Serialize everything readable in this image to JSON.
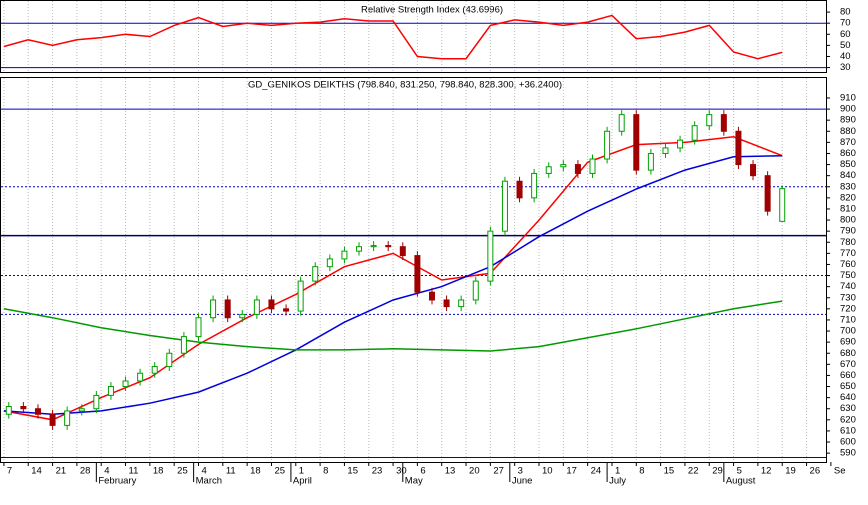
{
  "chart_data": [
    {
      "type": "line",
      "title": "Relative Strength Index (43.6996)",
      "x": [
        0,
        5,
        10,
        15,
        20,
        25,
        30,
        35,
        40,
        45,
        50,
        55,
        60,
        65,
        70,
        75,
        80,
        85,
        90,
        95,
        100,
        105,
        110,
        115,
        120,
        125,
        130,
        135,
        140,
        145,
        150,
        155,
        160
      ],
      "series": [
        {
          "color": "#ff0000",
          "values": [
            49,
            55,
            50,
            55,
            57,
            60,
            58,
            68,
            75,
            67,
            70,
            68,
            70,
            71,
            74,
            72,
            72,
            40,
            38,
            38,
            68,
            73,
            71,
            68,
            71,
            77,
            56,
            58,
            62,
            68,
            44,
            38,
            43.6996
          ]
        }
      ],
      "xlim": [
        -0.6,
        169
      ],
      "ylim": [
        26,
        90
      ],
      "yticks": [
        30,
        40,
        50,
        60,
        70,
        80
      ],
      "levels": [
        {
          "value": 70,
          "style": "solid",
          "color": "#0000cc"
        },
        {
          "value": 30,
          "style": "solid",
          "color": "#0000cc"
        }
      ],
      "grid": true
    },
    {
      "type": "candlestick",
      "title": "GD_GENIKOS DEIKTHS (798.840, 831.250, 798.840, 828.300, +36.2400)",
      "x": [
        1,
        4,
        7,
        10,
        13,
        16,
        19,
        22,
        25,
        28,
        31,
        34,
        37,
        40,
        43,
        46,
        49,
        52,
        55,
        58,
        61,
        64,
        67,
        70,
        73,
        76,
        79,
        82,
        85,
        88,
        91,
        94,
        97,
        100,
        103,
        106,
        109,
        112,
        115,
        118,
        121,
        124,
        127,
        130,
        133,
        136,
        139,
        142,
        145,
        148,
        151,
        154,
        157,
        160
      ],
      "open": [
        625,
        632,
        630,
        625,
        615,
        628,
        630,
        642,
        650,
        655,
        662,
        668,
        680,
        695,
        712,
        728,
        712,
        715,
        728,
        720,
        718,
        745,
        758,
        765,
        772,
        776,
        777,
        776,
        768,
        735,
        728,
        722,
        728,
        745,
        790,
        835,
        820,
        842,
        848,
        850,
        842,
        855,
        880,
        895,
        845,
        860,
        865,
        872,
        885,
        895,
        880,
        850,
        840,
        798.84
      ],
      "high": [
        636,
        636,
        634,
        629,
        632,
        634,
        646,
        654,
        659,
        666,
        672,
        684,
        699,
        716,
        732,
        732,
        719,
        732,
        732,
        724,
        749,
        762,
        769,
        776,
        780,
        781,
        781,
        780,
        772,
        739,
        732,
        732,
        749,
        794,
        839,
        839,
        846,
        852,
        854,
        854,
        859,
        884,
        899,
        899,
        864,
        869,
        876,
        889,
        899,
        899,
        884,
        854,
        844,
        831.25
      ],
      "low": [
        621,
        626,
        621,
        611,
        611,
        624,
        626,
        638,
        646,
        651,
        658,
        664,
        676,
        691,
        708,
        708,
        708,
        711,
        716,
        714,
        714,
        741,
        754,
        761,
        768,
        772,
        772,
        764,
        731,
        724,
        718,
        718,
        724,
        741,
        786,
        816,
        816,
        838,
        844,
        838,
        838,
        851,
        876,
        841,
        841,
        856,
        861,
        868,
        881,
        876,
        846,
        836,
        804,
        798.84
      ],
      "close": [
        632,
        630,
        625,
        615,
        628,
        630,
        642,
        650,
        655,
        662,
        668,
        680,
        695,
        712,
        728,
        712,
        715,
        728,
        720,
        718,
        745,
        758,
        765,
        772,
        776,
        777,
        776,
        768,
        735,
        728,
        722,
        728,
        745,
        790,
        835,
        820,
        842,
        848,
        850,
        842,
        855,
        880,
        895,
        845,
        860,
        865,
        872,
        885,
        895,
        880,
        850,
        840,
        808,
        828.3
      ],
      "up_color": "#00a000",
      "down_color": "#a00000",
      "series": [
        {
          "color": "#ff0000",
          "x": [
            0,
            10,
            20,
            30,
            40,
            50,
            60,
            70,
            80,
            90,
            100,
            110,
            120,
            130,
            140,
            150,
            160
          ],
          "values": [
            628,
            620,
            640,
            658,
            688,
            712,
            733,
            758,
            770,
            746,
            752,
            800,
            852,
            868,
            870,
            875,
            858
          ]
        },
        {
          "color": "#0000dd",
          "x": [
            0,
            10,
            20,
            30,
            40,
            50,
            60,
            70,
            80,
            90,
            100,
            110,
            120,
            130,
            140,
            150,
            160
          ],
          "values": [
            628,
            625,
            628,
            635,
            645,
            662,
            683,
            708,
            728,
            740,
            758,
            785,
            808,
            828,
            845,
            857,
            858
          ]
        },
        {
          "color": "#009900",
          "x": [
            0,
            10,
            20,
            30,
            40,
            50,
            60,
            70,
            80,
            90,
            100,
            110,
            120,
            130,
            140,
            150,
            160
          ],
          "values": [
            720,
            712,
            703,
            696,
            690,
            686,
            683,
            683,
            684,
            683,
            682,
            686,
            694,
            702,
            711,
            720,
            727
          ]
        }
      ],
      "xlim": [
        -0.6,
        169
      ],
      "ylim": [
        582,
        928
      ],
      "yticks": [
        590,
        600,
        610,
        620,
        630,
        640,
        650,
        660,
        670,
        680,
        690,
        700,
        710,
        720,
        730,
        740,
        750,
        760,
        770,
        780,
        790,
        800,
        810,
        820,
        830,
        840,
        850,
        860,
        870,
        880,
        890,
        900,
        910
      ],
      "xticks": [
        {
          "value": 0,
          "label": "7"
        },
        {
          "value": 5,
          "label": "14"
        },
        {
          "value": 10,
          "label": "21"
        },
        {
          "value": 15,
          "label": "28"
        },
        {
          "value": 20,
          "label": "4"
        },
        {
          "value": 25,
          "label": "11"
        },
        {
          "value": 30,
          "label": "18"
        },
        {
          "value": 35,
          "label": "25"
        },
        {
          "value": 40,
          "label": "4"
        },
        {
          "value": 45,
          "label": "11"
        },
        {
          "value": 50,
          "label": "18"
        },
        {
          "value": 55,
          "label": "25"
        },
        {
          "value": 60,
          "label": "1"
        },
        {
          "value": 65,
          "label": "8"
        },
        {
          "value": 70,
          "label": "15"
        },
        {
          "value": 75,
          "label": "23"
        },
        {
          "value": 80,
          "label": "30"
        },
        {
          "value": 85,
          "label": "6"
        },
        {
          "value": 90,
          "label": "13"
        },
        {
          "value": 95,
          "label": "20"
        },
        {
          "value": 100,
          "label": "27"
        },
        {
          "value": 105,
          "label": "3"
        },
        {
          "value": 110,
          "label": "10"
        },
        {
          "value": 115,
          "label": "17"
        },
        {
          "value": 120,
          "label": "24"
        },
        {
          "value": 125,
          "label": "1"
        },
        {
          "value": 130,
          "label": "8"
        },
        {
          "value": 135,
          "label": "15"
        },
        {
          "value": 140,
          "label": "22"
        },
        {
          "value": 145,
          "label": "29"
        },
        {
          "value": 150,
          "label": "5"
        },
        {
          "value": 155,
          "label": "12"
        },
        {
          "value": 160,
          "label": "19"
        },
        {
          "value": 165,
          "label": "26"
        },
        {
          "value": 170,
          "label": "Se"
        }
      ],
      "months": [
        {
          "value": 19,
          "label": "February"
        },
        {
          "value": 39,
          "label": "March"
        },
        {
          "value": 59,
          "label": "April"
        },
        {
          "value": 82,
          "label": "May"
        },
        {
          "value": 104,
          "label": "June"
        },
        {
          "value": 124,
          "label": "July"
        },
        {
          "value": 148,
          "label": "August"
        }
      ],
      "levels": [
        {
          "value": 900,
          "style": "solid",
          "color": "#0000cc"
        },
        {
          "value": 830,
          "style": "dotted",
          "color": "#0000cc"
        },
        {
          "value": 786,
          "style": "solid",
          "color": "#000066"
        },
        {
          "value": 750,
          "style": "dotted",
          "color": "#0000cc"
        },
        {
          "value": 715,
          "style": "dotted",
          "color": "#0000cc"
        },
        {
          "value": 586,
          "style": "solid",
          "color": "#0000cc"
        }
      ],
      "grid": true
    }
  ]
}
